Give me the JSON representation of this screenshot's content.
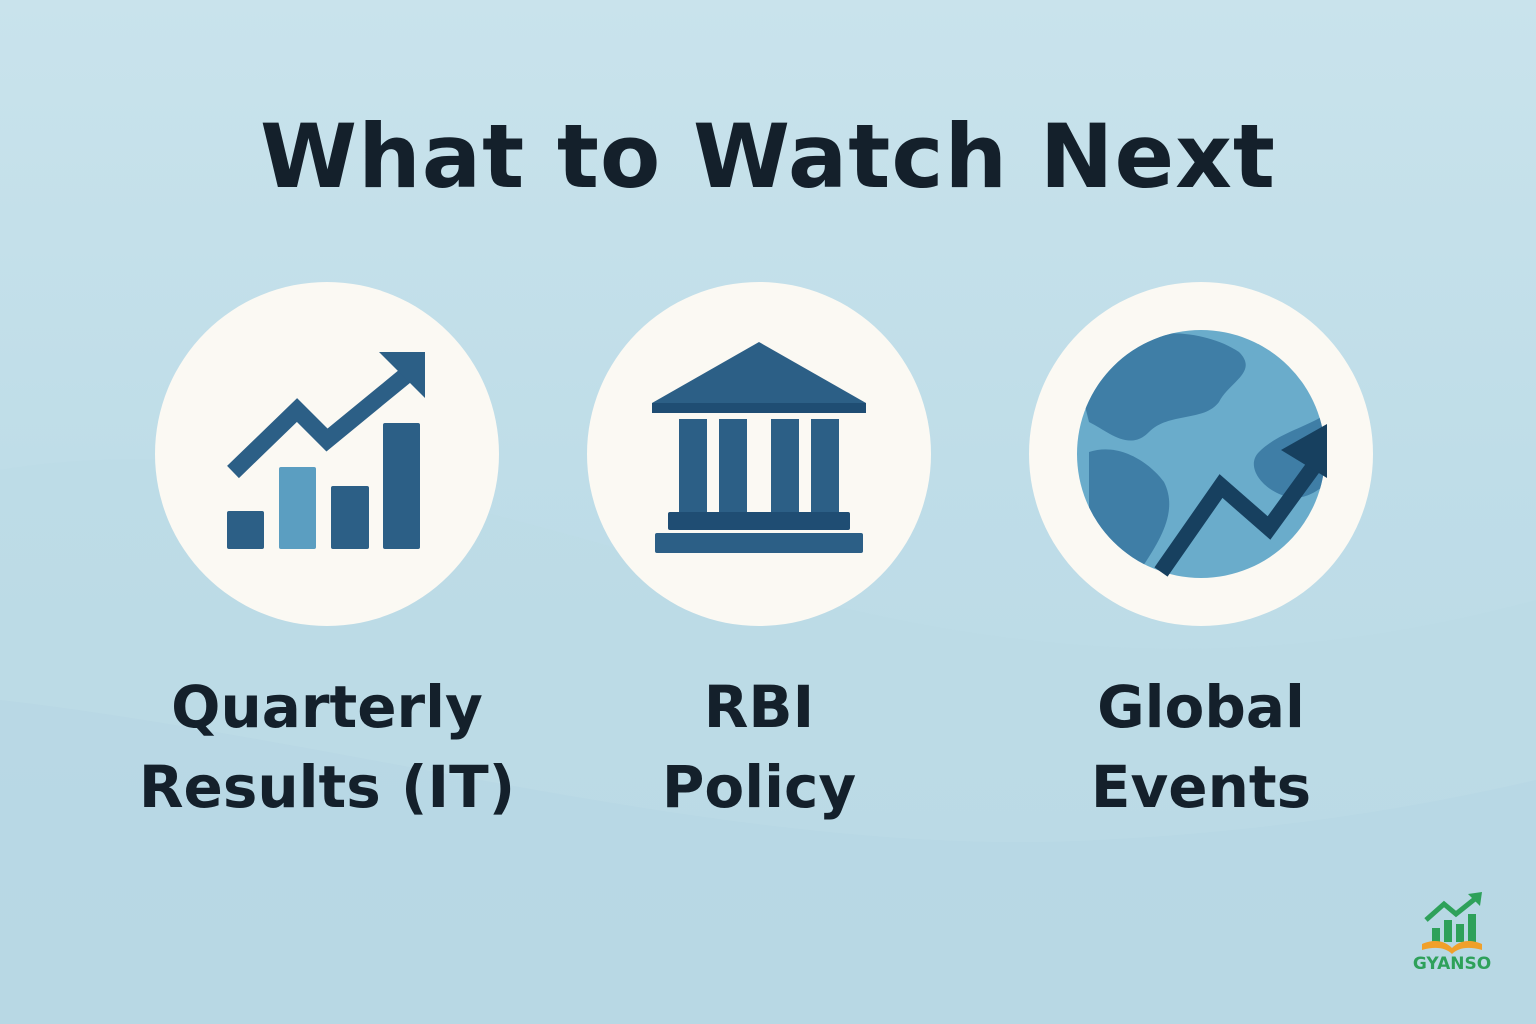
{
  "title": "What to Watch Next",
  "cards": [
    {
      "icon": "chart-growth-icon",
      "line1": "Quarterly",
      "line2": "Results (IT)"
    },
    {
      "icon": "bank-building-icon",
      "line1": "RBI",
      "line2": "Policy"
    },
    {
      "icon": "globe-trend-icon",
      "line1": "Global",
      "line2": "Events"
    }
  ],
  "logo": {
    "text": "GYANSO"
  },
  "colors": {
    "navy": "#2c5f86",
    "light_blue": "#5b9ec1",
    "dark_navy": "#17405f",
    "circle_bg": "#fbf9f3",
    "text": "#14202b",
    "logo_green": "#2ea15a",
    "logo_orange": "#f0a02a"
  }
}
